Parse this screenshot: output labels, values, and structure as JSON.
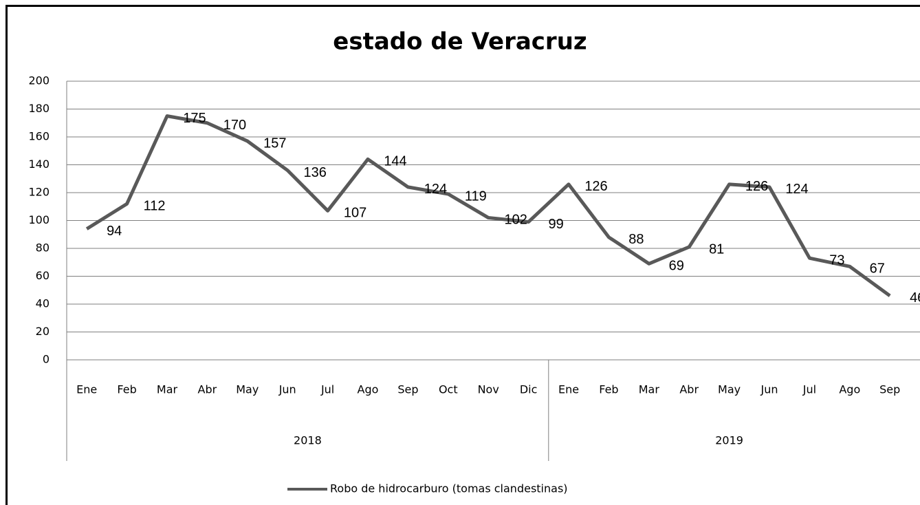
{
  "chart_data": {
    "type": "line",
    "title": "estado de Veracruz",
    "category_groups": [
      {
        "label": "2018",
        "categories": [
          "Ene",
          "Feb",
          "Mar",
          "Abr",
          "May",
          "Jun",
          "Jul",
          "Ago",
          "Sep",
          "Oct",
          "Nov",
          "Dic"
        ]
      },
      {
        "label": "2019",
        "categories": [
          "Ene",
          "Feb",
          "Mar",
          "Abr",
          "May",
          "Jun",
          "Jul",
          "Ago",
          "Sep"
        ]
      }
    ],
    "series": [
      {
        "name": "Robo de hidrocarburo (tomas clandestinas)",
        "color": "#595959",
        "values": [
          94,
          112,
          175,
          170,
          157,
          136,
          107,
          144,
          124,
          119,
          102,
          99,
          126,
          88,
          69,
          81,
          126,
          124,
          73,
          67,
          46
        ]
      }
    ],
    "ylim": [
      0,
      200
    ],
    "yticks": [
      0,
      20,
      40,
      60,
      80,
      100,
      120,
      140,
      160,
      180,
      200
    ],
    "grid": true,
    "legend": "bottom"
  }
}
